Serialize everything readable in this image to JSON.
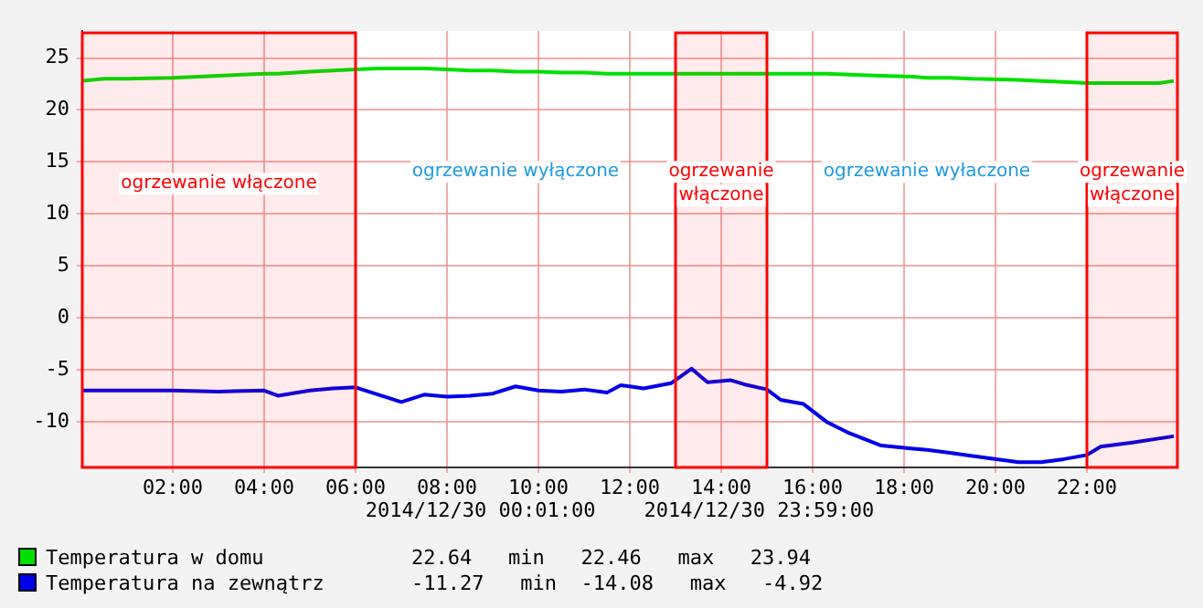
{
  "chart_data": {
    "type": "line",
    "x": [
      0.02,
      0.5,
      1,
      2,
      3,
      4,
      4.3,
      5,
      5.5,
      6,
      6.5,
      7,
      7.5,
      8,
      8.5,
      9,
      9.5,
      10,
      10.5,
      11,
      11.5,
      11.8,
      12,
      12.3,
      12.9,
      13.35,
      13.7,
      14.2,
      14.5,
      15,
      15.3,
      15.8,
      16.3,
      16.8,
      17.5,
      18.2,
      18.5,
      19,
      19.5,
      20.5,
      21,
      21.5,
      22,
      22.3,
      23,
      23.6,
      23.9
    ],
    "series": [
      {
        "name": "Temperatura w domu",
        "color": "#00e000",
        "values": [
          22.8,
          23.0,
          23.0,
          23.1,
          23.3,
          23.5,
          23.5,
          23.7,
          23.8,
          23.9,
          24.0,
          24.0,
          24.0,
          23.9,
          23.8,
          23.8,
          23.7,
          23.7,
          23.6,
          23.6,
          23.5,
          23.5,
          23.5,
          23.5,
          23.5,
          23.5,
          23.5,
          23.5,
          23.5,
          23.5,
          23.5,
          23.5,
          23.5,
          23.4,
          23.3,
          23.2,
          23.1,
          23.1,
          23.0,
          22.9,
          22.8,
          22.7,
          22.6,
          22.6,
          22.6,
          22.6,
          22.8
        ]
      },
      {
        "name": "Temperatura na zewnątrz",
        "color": "#0000e8",
        "values": [
          -7.0,
          -7.0,
          -7.0,
          -7.0,
          -7.1,
          -7.0,
          -7.5,
          -7.0,
          -6.8,
          -6.7,
          -7.4,
          -8.1,
          -7.4,
          -7.6,
          -7.5,
          -7.3,
          -6.6,
          -7.0,
          -7.1,
          -6.9,
          -7.2,
          -6.5,
          -6.6,
          -6.8,
          -6.3,
          -4.9,
          -6.2,
          -6.0,
          -6.4,
          -6.9,
          -7.9,
          -8.3,
          -10.0,
          -11.1,
          -12.3,
          -12.6,
          -12.7,
          -13.0,
          -13.3,
          -13.9,
          -13.9,
          -13.6,
          -13.2,
          -12.4,
          -12.0,
          -11.6,
          -11.4
        ]
      }
    ],
    "xlim": [
      0.02,
      23.98
    ],
    "xticks": [
      {
        "value": 2,
        "label": "02:00"
      },
      {
        "value": 4,
        "label": "04:00"
      },
      {
        "value": 6,
        "label": "06:00"
      },
      {
        "value": 8,
        "label": "08:00"
      },
      {
        "value": 10,
        "label": "10:00"
      },
      {
        "value": 12,
        "label": "12:00"
      },
      {
        "value": 14,
        "label": "14:00"
      },
      {
        "value": 16,
        "label": "16:00"
      },
      {
        "value": 18,
        "label": "18:00"
      },
      {
        "value": 20,
        "label": "20:00"
      },
      {
        "value": 22,
        "label": "22:00"
      }
    ],
    "ylim": [
      -14.4,
      27.6
    ],
    "yticks": [
      -10,
      -5,
      0,
      5,
      10,
      15,
      20,
      25
    ],
    "grid": true,
    "legend": "bottom left",
    "marker": "none",
    "line_style": "solid",
    "bands": [
      {
        "axis": "x",
        "from": 0.02,
        "to": 6,
        "label": "ogrzewanie włączone",
        "color": "#ff0000"
      },
      {
        "axis": "x",
        "from": 13,
        "to": 15,
        "label": "ogrzewanie włączone",
        "color": "#ff0000"
      },
      {
        "axis": "x",
        "from": 22,
        "to": 23.98,
        "label": "ogrzewanie włączone",
        "color": "#ff0000"
      }
    ],
    "annotations": [
      "2014/12/30 00:01:00    2014/12/30 23:59:00",
      "22.64   min   22.46   max   23.94",
      "-11.27   min  -14.08   max   -4.92",
      "ogrzewanie wyłączone",
      "ogrzewanie wyłaczone"
    ]
  }
}
